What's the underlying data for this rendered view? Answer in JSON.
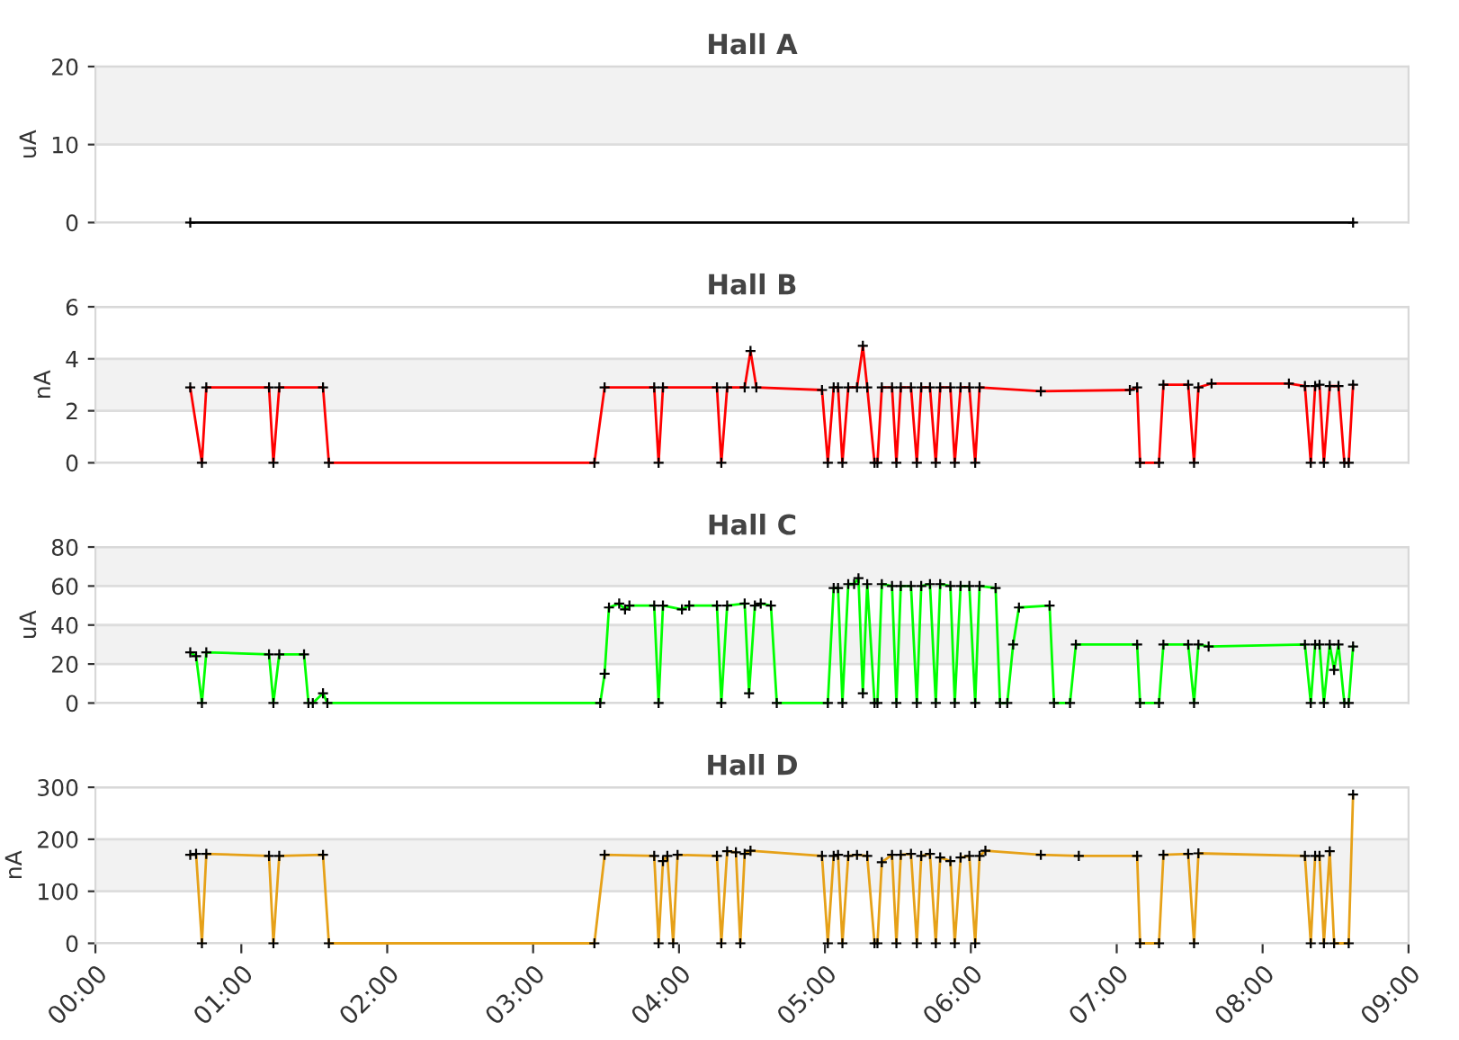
{
  "chart_data": [
    {
      "type": "line",
      "title": "Hall A",
      "ylabel": "uA",
      "xlim": [
        0,
        9
      ],
      "ylim": [
        0,
        20
      ],
      "yticks": [
        0,
        10,
        20
      ],
      "grid": "y",
      "tick_labels": "y",
      "marker": "cross",
      "line_style": "solid",
      "bands": [
        {
          "axis": "y",
          "from": 10,
          "to": 20,
          "color": "#f2f2f2"
        }
      ],
      "series": [
        {
          "color": "#000000",
          "x": [
            0.65,
            8.62
          ],
          "values": [
            0,
            0
          ]
        }
      ]
    },
    {
      "type": "line",
      "title": "Hall B",
      "ylabel": "nA",
      "xlim": [
        0,
        9
      ],
      "ylim": [
        0,
        6
      ],
      "yticks": [
        0,
        2,
        4,
        6
      ],
      "grid": "y",
      "tick_labels": "y",
      "marker": "cross",
      "line_style": "solid",
      "bands": [
        {
          "axis": "y",
          "from": 2,
          "to": 4,
          "color": "#f2f2f2"
        }
      ],
      "series": [
        {
          "color": "#ff0000",
          "x": [
            0.65,
            0.73,
            0.76,
            1.19,
            1.22,
            1.26,
            1.56,
            1.6,
            3.42,
            3.49,
            3.83,
            3.86,
            3.89,
            4.26,
            4.29,
            4.33,
            4.45,
            4.49,
            4.53,
            4.98,
            5.02,
            5.06,
            5.09,
            5.12,
            5.16,
            5.22,
            5.26,
            5.29,
            5.34,
            5.36,
            5.39,
            5.46,
            5.49,
            5.52,
            5.59,
            5.63,
            5.66,
            5.72,
            5.76,
            5.79,
            5.86,
            5.89,
            5.93,
            5.99,
            6.03,
            6.06,
            6.48,
            7.09,
            7.14,
            7.16,
            7.29,
            7.32,
            7.49,
            7.53,
            7.56,
            7.65,
            8.18,
            8.29,
            8.33,
            8.36,
            8.39,
            8.42,
            8.46,
            8.52,
            8.56,
            8.59,
            8.62
          ],
          "values": [
            2.9,
            0,
            2.9,
            2.9,
            0,
            2.9,
            2.9,
            0,
            0,
            2.9,
            2.9,
            0,
            2.9,
            2.9,
            0,
            2.9,
            2.9,
            4.3,
            2.9,
            2.8,
            0,
            2.9,
            2.9,
            0,
            2.9,
            2.9,
            4.5,
            2.9,
            0,
            0,
            2.9,
            2.9,
            0,
            2.9,
            2.9,
            0,
            2.9,
            2.9,
            0,
            2.9,
            2.9,
            0,
            2.9,
            2.9,
            0,
            2.9,
            2.75,
            2.8,
            2.9,
            0,
            0,
            3.0,
            3.0,
            0,
            2.9,
            3.05,
            3.05,
            2.95,
            0,
            2.95,
            3.0,
            0,
            2.95,
            2.95,
            0,
            0,
            3.0
          ]
        }
      ]
    },
    {
      "type": "line",
      "title": "Hall C",
      "ylabel": "uA",
      "xlim": [
        0,
        9
      ],
      "ylim": [
        0,
        80
      ],
      "yticks": [
        0,
        20,
        40,
        60,
        80
      ],
      "grid": "y",
      "tick_labels": "y",
      "marker": "cross",
      "line_style": "solid",
      "bands": [
        {
          "axis": "y",
          "from": 20,
          "to": 40,
          "color": "#f2f2f2"
        },
        {
          "axis": "y",
          "from": 60,
          "to": 80,
          "color": "#f2f2f2"
        }
      ],
      "series": [
        {
          "color": "#00ff00",
          "x": [
            0.65,
            0.69,
            0.73,
            0.76,
            1.19,
            1.22,
            1.26,
            1.43,
            1.46,
            1.49,
            1.56,
            1.59,
            3.46,
            3.49,
            3.52,
            3.59,
            3.63,
            3.66,
            3.83,
            3.86,
            3.89,
            4.02,
            4.07,
            4.26,
            4.29,
            4.33,
            4.45,
            4.48,
            4.52,
            4.56,
            4.63,
            4.67,
            5.02,
            5.06,
            5.09,
            5.12,
            5.16,
            5.2,
            5.23,
            5.26,
            5.29,
            5.34,
            5.36,
            5.39,
            5.46,
            5.49,
            5.52,
            5.59,
            5.63,
            5.66,
            5.72,
            5.76,
            5.79,
            5.86,
            5.89,
            5.93,
            5.99,
            6.03,
            6.06,
            6.17,
            6.2,
            6.25,
            6.29,
            6.33,
            6.54,
            6.57,
            6.68,
            6.72,
            7.14,
            7.16,
            7.29,
            7.32,
            7.49,
            7.53,
            7.56,
            7.63,
            8.29,
            8.33,
            8.36,
            8.39,
            8.42,
            8.46,
            8.49,
            8.52,
            8.56,
            8.59,
            8.62
          ],
          "values": [
            26,
            24,
            0,
            26,
            25,
            0,
            25,
            25,
            0,
            0,
            5,
            0,
            0,
            15,
            49,
            51,
            48,
            50,
            50,
            0,
            50,
            48,
            50,
            50,
            0,
            50,
            51,
            5,
            50,
            51,
            50,
            0,
            0,
            59,
            59,
            0,
            61,
            61,
            64,
            5,
            61,
            0,
            0,
            61,
            60,
            0,
            60,
            60,
            0,
            60,
            61,
            0,
            61,
            60,
            0,
            60,
            60,
            0,
            60,
            59,
            0,
            0,
            30,
            49,
            50,
            0,
            0,
            30,
            30,
            0,
            0,
            30,
            30,
            0,
            30,
            29,
            30,
            0,
            30,
            30,
            0,
            30,
            17,
            30,
            0,
            0,
            29
          ]
        }
      ]
    },
    {
      "type": "line",
      "title": "Hall D",
      "ylabel": "nA",
      "xlim": [
        0,
        9
      ],
      "ylim": [
        0,
        300
      ],
      "yticks": [
        0,
        100,
        200,
        300
      ],
      "grid": "y",
      "marker": "cross",
      "line_style": "solid",
      "xticks": [
        {
          "value": 0,
          "label": "00:00"
        },
        {
          "value": 1,
          "label": "01:00"
        },
        {
          "value": 2,
          "label": "02:00"
        },
        {
          "value": 3,
          "label": "03:00"
        },
        {
          "value": 4,
          "label": "04:00"
        },
        {
          "value": 5,
          "label": "05:00"
        },
        {
          "value": 6,
          "label": "06:00"
        },
        {
          "value": 7,
          "label": "07:00"
        },
        {
          "value": 8,
          "label": "08:00"
        },
        {
          "value": 9,
          "label": "09:00"
        }
      ],
      "bands": [
        {
          "axis": "y",
          "from": 100,
          "to": 200,
          "color": "#f2f2f2"
        }
      ],
      "series": [
        {
          "color": "#e6a118",
          "x": [
            0.65,
            0.69,
            0.73,
            0.76,
            1.19,
            1.22,
            1.26,
            1.56,
            1.6,
            3.42,
            3.49,
            3.83,
            3.86,
            3.89,
            3.92,
            3.96,
            3.99,
            4.26,
            4.29,
            4.33,
            4.39,
            4.42,
            4.45,
            4.49,
            4.98,
            5.02,
            5.06,
            5.09,
            5.12,
            5.16,
            5.22,
            5.29,
            5.34,
            5.36,
            5.39,
            5.46,
            5.49,
            5.52,
            5.59,
            5.63,
            5.66,
            5.72,
            5.76,
            5.79,
            5.86,
            5.89,
            5.93,
            5.99,
            6.03,
            6.06,
            6.1,
            6.48,
            6.74,
            7.14,
            7.16,
            7.29,
            7.32,
            7.49,
            7.53,
            7.56,
            8.29,
            8.33,
            8.36,
            8.39,
            8.42,
            8.46,
            8.49,
            8.59,
            8.62
          ],
          "values": [
            170,
            172,
            0,
            172,
            168,
            0,
            168,
            170,
            0,
            0,
            170,
            168,
            0,
            158,
            168,
            0,
            170,
            168,
            0,
            177,
            175,
            0,
            172,
            178,
            168,
            0,
            168,
            170,
            0,
            168,
            170,
            168,
            0,
            0,
            156,
            170,
            0,
            170,
            172,
            0,
            168,
            172,
            0,
            165,
            158,
            0,
            165,
            168,
            0,
            168,
            178,
            170,
            168,
            168,
            0,
            0,
            170,
            172,
            0,
            173,
            168,
            0,
            168,
            168,
            0,
            177,
            0,
            0,
            286
          ]
        }
      ]
    }
  ]
}
